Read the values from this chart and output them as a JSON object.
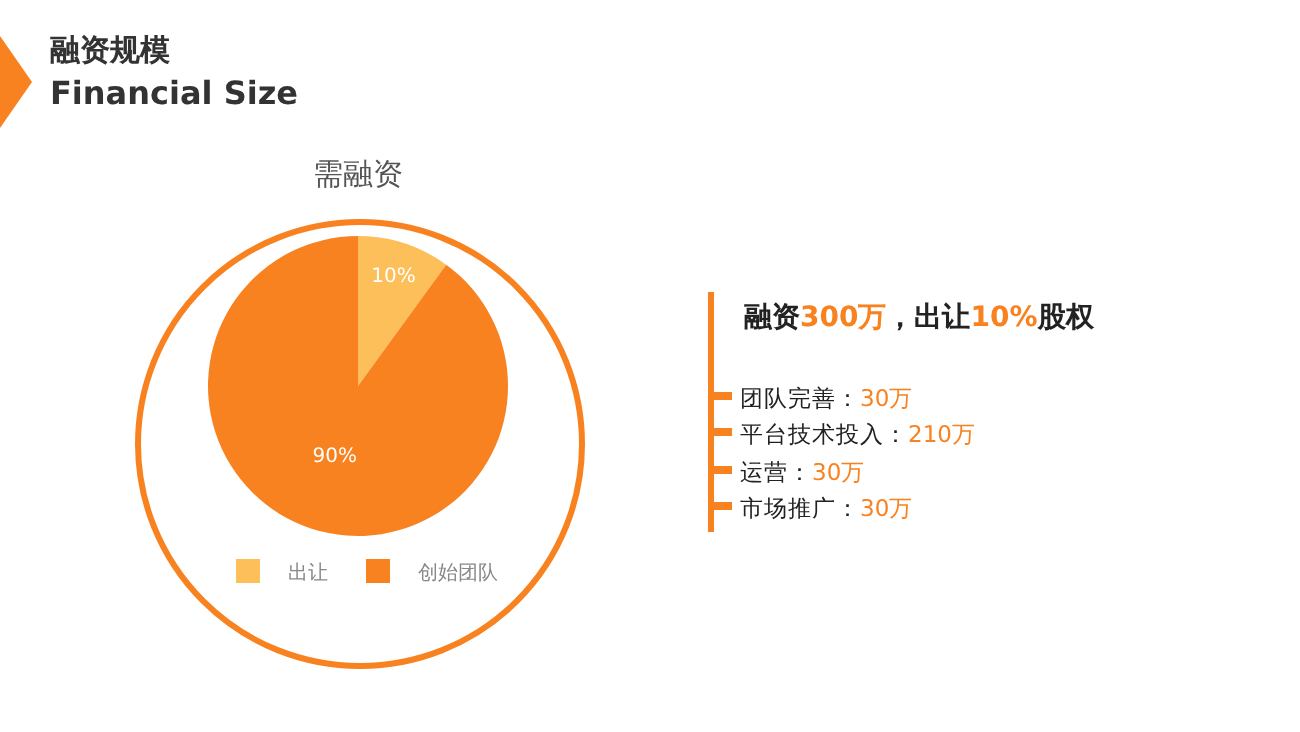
{
  "chart_data": {
    "type": "pie",
    "title": "需融资",
    "categories": [
      "出让",
      "创始团队"
    ],
    "values": [
      10,
      90
    ],
    "colors": [
      "#fdbf5a",
      "#f98220"
    ],
    "value_labels": [
      "10%",
      "90%"
    ],
    "legend": "bottom",
    "annotations": [
      "融资规模",
      "Financial Size",
      "融资300万，出让10%股权",
      "团队完善：30万",
      "平台技术投入：210万",
      "运营：30万",
      "市场推广：30万"
    ]
  }
}
